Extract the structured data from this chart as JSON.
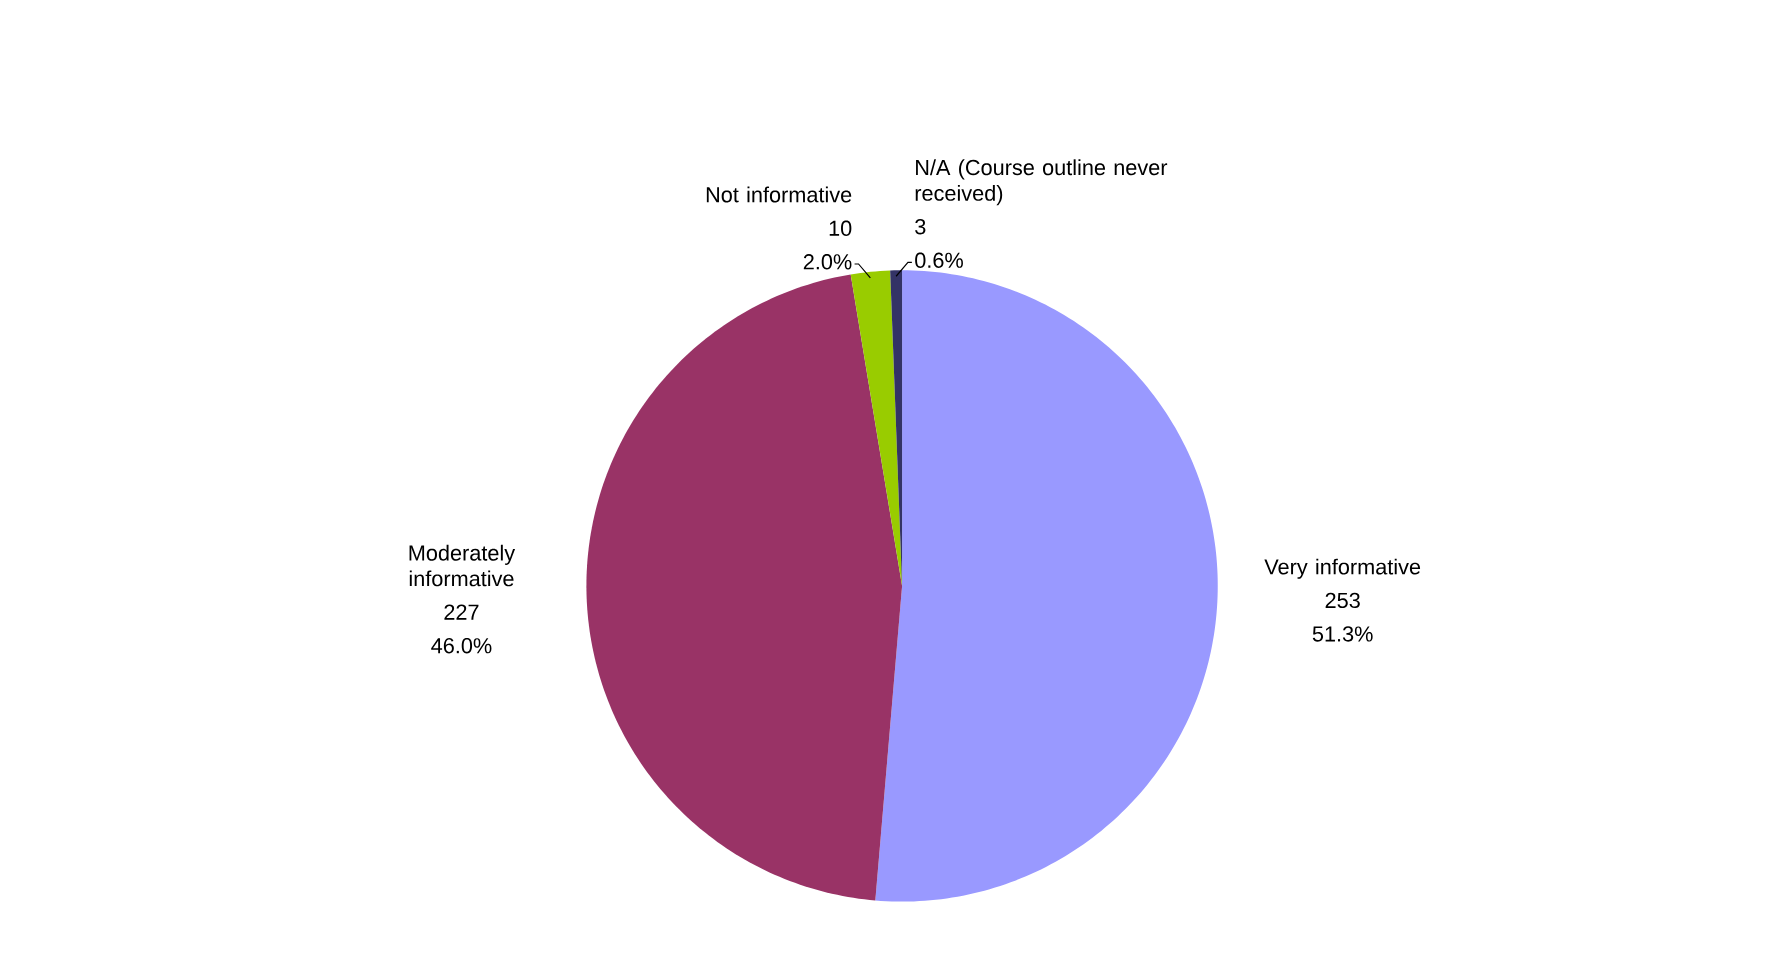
{
  "chart_data": {
    "type": "pie",
    "categories": [
      "Very informative",
      "Moderately informative",
      "Not informative",
      "N/A (Course outline never received)"
    ],
    "values": [
      51.3,
      46.0,
      2.0,
      0.6
    ],
    "colors": [
      "#9999ff",
      "#993366",
      "#99cc00",
      "#333366"
    ],
    "value_labels": [
      "51.3%",
      "46.0%",
      "2.0%",
      "0.6%"
    ],
    "annotations": [
      "253",
      "227",
      "10",
      "3"
    ]
  }
}
